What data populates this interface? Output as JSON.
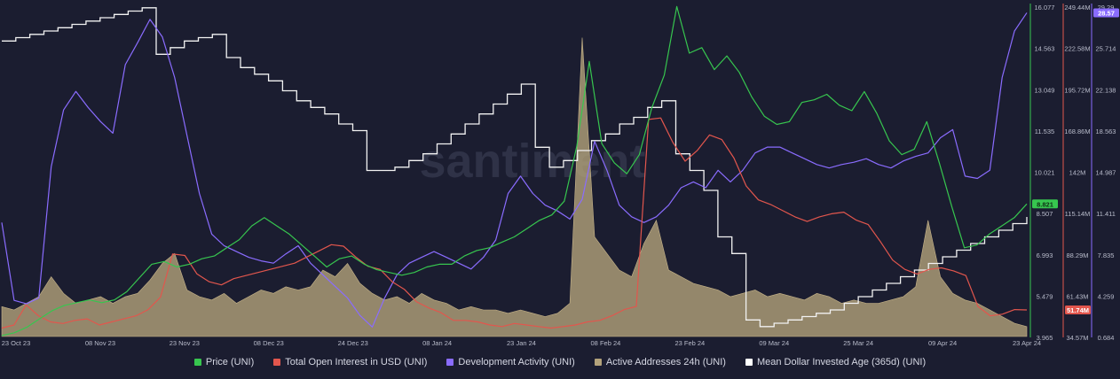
{
  "chart_data": {
    "type": "line",
    "watermark": "santiment",
    "x_ticks": [
      "23 Oct 23",
      "08 Nov 23",
      "23 Nov 23",
      "08 Dec 23",
      "24 Dec 23",
      "08 Jan 24",
      "23 Jan 24",
      "08 Feb 24",
      "23 Feb 24",
      "09 Mar 24",
      "25 Mar 24",
      "09 Apr 24",
      "23 Apr 24"
    ],
    "axes": [
      {
        "id": "price",
        "color": "#37c64f",
        "ticks": [
          "16.077",
          "14.563",
          "13.049",
          "11.535",
          "10.021",
          "8.507",
          "6.993",
          "5.479",
          "3.965"
        ],
        "range": [
          3.965,
          16.077
        ],
        "last_value": "8.821"
      },
      {
        "id": "oi",
        "color": "#e2564d",
        "ticks": [
          "249.44M",
          "222.58M",
          "195.72M",
          "168.86M",
          "142M",
          "115.14M",
          "88.29M",
          "61.43M",
          "34.57M"
        ],
        "range": [
          34.57,
          249.44
        ],
        "last_value": "51.74M"
      },
      {
        "id": "dev",
        "color": "#8a6cff",
        "ticks": [
          "29.29",
          "25.714",
          "22.138",
          "18.563",
          "14.987",
          "11.411",
          "7.835",
          "4.259",
          "0.684"
        ],
        "range": [
          0.684,
          29.29
        ],
        "last_value": "28.57"
      }
    ],
    "series": [
      {
        "name": "Price (UNI)",
        "axis": "price",
        "color": "#37c64f",
        "style": "line",
        "values": [
          4.0,
          4.1,
          4.3,
          4.6,
          4.9,
          5.1,
          5.2,
          5.3,
          5.2,
          5.3,
          5.6,
          6.1,
          6.6,
          6.7,
          6.5,
          6.6,
          6.8,
          6.9,
          7.2,
          7.5,
          8.0,
          8.3,
          8.0,
          7.7,
          7.3,
          6.9,
          6.5,
          6.8,
          6.9,
          6.6,
          6.4,
          6.3,
          6.2,
          6.3,
          6.5,
          6.6,
          6.6,
          6.9,
          7.1,
          7.2,
          7.4,
          7.6,
          7.9,
          8.2,
          8.4,
          8.9,
          10.9,
          14.0,
          11.0,
          10.3,
          9.9,
          10.6,
          12.3,
          13.5,
          16.0,
          14.3,
          14.5,
          13.7,
          14.2,
          13.6,
          12.7,
          12.0,
          11.7,
          11.8,
          12.5,
          12.6,
          12.8,
          12.4,
          12.2,
          12.9,
          12.1,
          11.1,
          10.6,
          10.8,
          11.8,
          10.3,
          8.7,
          7.2,
          7.3,
          7.7,
          8.0,
          8.3,
          8.8
        ]
      },
      {
        "name": "Total Open Interest in USD (UNI)",
        "axis": "oi",
        "color": "#e2564d",
        "style": "line",
        "values": [
          40,
          42,
          55,
          48,
          44,
          43,
          45,
          46,
          42,
          44,
          46,
          48,
          52,
          60,
          88,
          87,
          75,
          70,
          68,
          72,
          74,
          76,
          78,
          80,
          82,
          86,
          90,
          94,
          93,
          86,
          80,
          78,
          70,
          65,
          57,
          53,
          50,
          45,
          45,
          44,
          42,
          41,
          43,
          42,
          41,
          40,
          41,
          42,
          44,
          45,
          48,
          52,
          54,
          175,
          176,
          160,
          148,
          155,
          165,
          162,
          150,
          132,
          123,
          120,
          116,
          112,
          109,
          112,
          114,
          115,
          110,
          107,
          96,
          84,
          78,
          75,
          78,
          79,
          77,
          74,
          54,
          48,
          49,
          52,
          51.74
        ]
      },
      {
        "name": "Development Activity (UNI)",
        "axis": "dev",
        "color": "#8a6cff",
        "style": "line",
        "values": [
          10.5,
          3.8,
          3.5,
          4.0,
          15.3,
          20.2,
          21.8,
          20.4,
          19.2,
          18.2,
          24.1,
          26.0,
          28.0,
          26.5,
          23.0,
          18.0,
          13.0,
          9.5,
          8.5,
          8.0,
          7.5,
          7.2,
          7.0,
          7.8,
          8.5,
          7.0,
          6.0,
          5.0,
          4.0,
          2.5,
          1.5,
          4.0,
          6.0,
          7.0,
          7.5,
          8.0,
          7.5,
          7.0,
          6.5,
          7.5,
          9.0,
          13.0,
          14.5,
          13.0,
          12.0,
          11.5,
          10.8,
          12.5,
          17.5,
          15.0,
          12.0,
          11.0,
          10.5,
          11.0,
          12.0,
          13.5,
          14.0,
          13.5,
          15.0,
          14.0,
          15.0,
          16.5,
          17.0,
          17.0,
          16.5,
          16.0,
          15.5,
          15.2,
          15.5,
          15.7,
          16.0,
          15.5,
          15.2,
          15.8,
          16.2,
          16.5,
          17.8,
          18.5,
          14.5,
          14.3,
          15.0,
          23.0,
          27.0,
          28.57
        ]
      },
      {
        "name": "Active Addresses 24h (UNI)",
        "axis": "none",
        "color": "#b3a27b",
        "style": "area",
        "note": "no visible axis",
        "values": [
          0.09,
          0.08,
          0.1,
          0.12,
          0.18,
          0.13,
          0.1,
          0.11,
          0.12,
          0.1,
          0.12,
          0.13,
          0.17,
          0.22,
          0.25,
          0.14,
          0.12,
          0.11,
          0.13,
          0.1,
          0.12,
          0.14,
          0.13,
          0.15,
          0.14,
          0.15,
          0.2,
          0.18,
          0.22,
          0.16,
          0.13,
          0.11,
          0.12,
          0.1,
          0.13,
          0.11,
          0.1,
          0.08,
          0.09,
          0.08,
          0.08,
          0.07,
          0.08,
          0.07,
          0.06,
          0.07,
          0.1,
          0.9,
          0.3,
          0.25,
          0.2,
          0.18,
          0.28,
          0.35,
          0.2,
          0.18,
          0.16,
          0.15,
          0.14,
          0.12,
          0.13,
          0.14,
          0.12,
          0.13,
          0.12,
          0.11,
          0.13,
          0.12,
          0.1,
          0.11,
          0.1,
          0.1,
          0.11,
          0.12,
          0.15,
          0.35,
          0.18,
          0.13,
          0.11,
          0.1,
          0.08,
          0.06,
          0.04,
          0.03
        ]
      },
      {
        "name": "Mean Dollar Invested Age (365d) (UNI)",
        "axis": "none",
        "color": "#f2f2f2",
        "style": "step",
        "note": "no visible axis",
        "values": [
          0.89,
          0.9,
          0.91,
          0.92,
          0.93,
          0.94,
          0.95,
          0.96,
          0.97,
          0.98,
          0.99,
          0.85,
          0.87,
          0.89,
          0.9,
          0.91,
          0.84,
          0.81,
          0.79,
          0.77,
          0.74,
          0.71,
          0.69,
          0.67,
          0.64,
          0.62,
          0.5,
          0.5,
          0.51,
          0.53,
          0.55,
          0.58,
          0.61,
          0.64,
          0.67,
          0.7,
          0.73,
          0.76,
          0.57,
          0.51,
          0.53,
          0.56,
          0.59,
          0.61,
          0.64,
          0.66,
          0.69,
          0.71,
          0.55,
          0.5,
          0.44,
          0.3,
          0.25,
          0.05,
          0.03,
          0.04,
          0.05,
          0.06,
          0.07,
          0.08,
          0.1,
          0.12,
          0.14,
          0.16,
          0.18,
          0.2,
          0.22,
          0.24,
          0.26,
          0.28,
          0.3,
          0.32,
          0.34,
          0.36
        ]
      }
    ],
    "legend": [
      {
        "label": "Price (UNI)",
        "color": "#37c64f"
      },
      {
        "label": "Total Open Interest in USD (UNI)",
        "color": "#e2564d"
      },
      {
        "label": "Development Activity (UNI)",
        "color": "#8a6cff"
      },
      {
        "label": "Active Addresses 24h (UNI)",
        "color": "#b3a27b"
      },
      {
        "label": "Mean Dollar Invested Age (365d) (UNI)",
        "color": "#ffffff"
      }
    ],
    "grid": false,
    "legend_position": "bottom"
  }
}
